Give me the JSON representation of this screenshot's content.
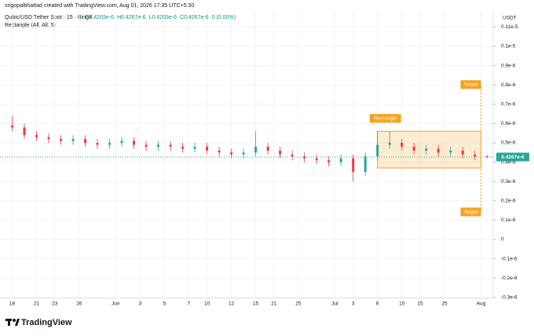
{
  "chart_data": {
    "type": "candlestick",
    "credit": "srigopalbhattad created with TradingView.com, Aug 01, 2026 17:35 UTC+5:30",
    "symbol": "Qubic/USD Tether Spot · 15 · BingX",
    "ohlc_legend": [
      "O0.4203e-6",
      "H0.4267e-6",
      "L0.4203e-6",
      "C0.4267e-6",
      "0 (0.00%)"
    ],
    "indicator": "Rectangle (All, All, 5)",
    "currency": "USDT",
    "brand": "TradingView",
    "up_color": "#26a69a",
    "down_color": "#f23645",
    "grid": true,
    "x": [
      0,
      2,
      4,
      6,
      8,
      10,
      12,
      14,
      16,
      18,
      20,
      22,
      24,
      26,
      28,
      30,
      32,
      34,
      36,
      38,
      40,
      42,
      44,
      46,
      48,
      50,
      52,
      54,
      56,
      58,
      60,
      62,
      64,
      66,
      68,
      70,
      72,
      74,
      76,
      78
    ],
    "open": [
      5.9e-07,
      5.8e-07,
      5.4e-07,
      5.3e-07,
      5.2e-07,
      5.1e-07,
      5.2e-07,
      5e-07,
      4.9e-07,
      5e-07,
      5.1e-07,
      4.9e-07,
      4.8e-07,
      4.9e-07,
      4.8e-07,
      4.7e-07,
      4.8e-07,
      4.6e-07,
      4.5e-07,
      4.4e-07,
      4.5e-07,
      4.8e-07,
      4.6e-07,
      4.4e-07,
      4.3e-07,
      4.2e-07,
      4.1e-07,
      4e-07,
      4.2e-07,
      3.5e-07,
      4.3e-07,
      4.9e-07,
      5e-07,
      4.8e-07,
      4.6e-07,
      4.7e-07,
      4.5e-07,
      4.6e-07,
      4.4e-07,
      4.3e-07
    ],
    "high": [
      6.4e-07,
      6e-07,
      5.6e-07,
      5.5e-07,
      5.4e-07,
      5.4e-07,
      5.4e-07,
      5.2e-07,
      5.2e-07,
      5.3e-07,
      5.3e-07,
      5.1e-07,
      5.1e-07,
      5.1e-07,
      5e-07,
      5e-07,
      5e-07,
      4.8e-07,
      4.7e-07,
      4.7e-07,
      5.6e-07,
      5e-07,
      4.8e-07,
      4.6e-07,
      4.5e-07,
      4.4e-07,
      4.3e-07,
      4.4e-07,
      4.4e-07,
      4.5e-07,
      5.6e-07,
      5.6e-07,
      5.2e-07,
      5e-07,
      4.9e-07,
      4.9e-07,
      4.8e-07,
      4.8e-07,
      4.6e-07,
      4.4e-07
    ],
    "low": [
      5.6e-07,
      5.2e-07,
      5.1e-07,
      5e-07,
      4.9e-07,
      4.9e-07,
      4.8e-07,
      4.7e-07,
      4.7e-07,
      4.8e-07,
      4.7e-07,
      4.6e-07,
      4.6e-07,
      4.6e-07,
      4.5e-07,
      4.5e-07,
      4.4e-07,
      4.3e-07,
      4.2e-07,
      4.2e-07,
      4.3e-07,
      4.4e-07,
      4.2e-07,
      4.1e-07,
      4e-07,
      3.9e-07,
      3.8e-07,
      3.8e-07,
      3e-07,
      3.3e-07,
      4.1e-07,
      4.7e-07,
      4.6e-07,
      4.4e-07,
      4.4e-07,
      4.3e-07,
      4.3e-07,
      4.2e-07,
      4.1e-07,
      4.2e-07
    ],
    "close": [
      5.8e-07,
      5.4e-07,
      5.3e-07,
      5.2e-07,
      5.1e-07,
      5.2e-07,
      5e-07,
      4.9e-07,
      5e-07,
      5.1e-07,
      4.9e-07,
      4.8e-07,
      4.9e-07,
      4.8e-07,
      4.7e-07,
      4.8e-07,
      4.6e-07,
      4.5e-07,
      4.4e-07,
      4.5e-07,
      4.8e-07,
      4.6e-07,
      4.4e-07,
      4.3e-07,
      4.2e-07,
      4.1e-07,
      4e-07,
      4.2e-07,
      3.5e-07,
      4.3e-07,
      4.9e-07,
      5e-07,
      4.8e-07,
      4.6e-07,
      4.7e-07,
      4.5e-07,
      4.6e-07,
      4.4e-07,
      4.3e-07,
      4.267e-07
    ],
    "last_price": {
      "value": 4.267e-07,
      "label": "0.4267e-6"
    },
    "rectangle": {
      "label": "Rectangle",
      "x": [
        60,
        77
      ],
      "top": 5.6e-07,
      "bottom": 3.7e-07,
      "color": "#f7a21b"
    },
    "targets": [
      {
        "label": "Target",
        "x": 77,
        "value": 8e-07
      },
      {
        "label": "Target",
        "x": 77,
        "value": 1.4e-07
      }
    ],
    "xlim": [
      -2,
      79
    ],
    "xticks": [
      {
        "value": 0,
        "label": "18"
      },
      {
        "value": 4,
        "label": "21"
      },
      {
        "value": 7,
        "label": "23"
      },
      {
        "value": 11,
        "label": "26"
      },
      {
        "value": 17,
        "label": "Jun"
      },
      {
        "value": 21,
        "label": "3"
      },
      {
        "value": 25,
        "label": "5"
      },
      {
        "value": 29,
        "label": "7"
      },
      {
        "value": 32,
        "label": "10"
      },
      {
        "value": 36,
        "label": "12"
      },
      {
        "value": 40,
        "label": "15"
      },
      {
        "value": 43,
        "label": "21"
      },
      {
        "value": 47,
        "label": "25"
      },
      {
        "value": 53,
        "label": "Jul"
      },
      {
        "value": 56,
        "label": "3"
      },
      {
        "value": 60,
        "label": "6"
      },
      {
        "value": 64,
        "label": "10"
      },
      {
        "value": 67,
        "label": "15"
      },
      {
        "value": 71,
        "label": "25"
      },
      {
        "value": 77,
        "label": "Aug"
      }
    ],
    "ylim": [
      -3.05e-07,
      1.179e-06
    ],
    "yticks": [
      {
        "value": 1.1e-06,
        "label": "0.11e-5"
      },
      {
        "value": 1e-06,
        "label": "0.1e-5"
      },
      {
        "value": 9e-07,
        "label": "0.9e-6"
      },
      {
        "value": 8e-07,
        "label": "0.8e-6"
      },
      {
        "value": 7e-07,
        "label": "0.7e-6"
      },
      {
        "value": 6e-07,
        "label": "0.6e-6"
      },
      {
        "value": 5e-07,
        "label": "0.5e-6"
      },
      {
        "value": 4e-07,
        "label": "0.4e-6"
      },
      {
        "value": 3e-07,
        "label": "0.3e-6"
      },
      {
        "value": 2e-07,
        "label": "0.2e-6"
      },
      {
        "value": 1e-07,
        "label": "0.1e-6"
      },
      0,
      {
        "value": -1e-07,
        "label": "-0.1e-6"
      },
      {
        "value": -2e-07,
        "label": "-0.2e-6"
      },
      {
        "value": -3e-07,
        "label": "-0.3e-6"
      }
    ]
  }
}
